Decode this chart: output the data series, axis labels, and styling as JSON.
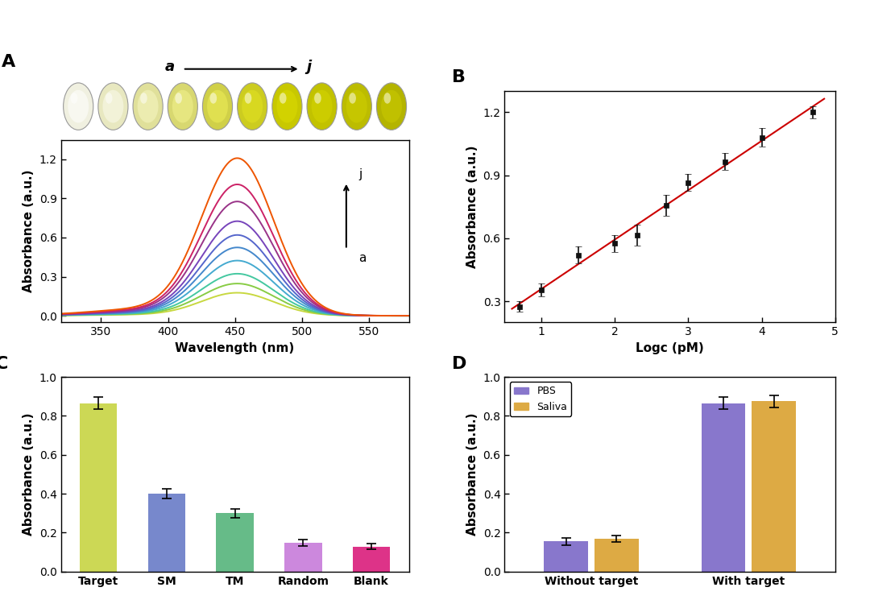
{
  "panel_A": {
    "label": "A",
    "peak_wavelength": 452,
    "peak_sigma": 27,
    "num_curves": 10,
    "peak_heights": [
      0.175,
      0.245,
      0.32,
      0.42,
      0.52,
      0.615,
      0.72,
      0.87,
      1.0,
      1.2
    ],
    "colors": [
      "#c8d840",
      "#88cc44",
      "#44c8a0",
      "#44aad0",
      "#4488cc",
      "#5566cc",
      "#7744bb",
      "#993388",
      "#cc2266",
      "#ee5500"
    ],
    "xlabel": "Wavelength (nm)",
    "ylabel": "Absorbance (a.u.)",
    "xlim": [
      320,
      580
    ],
    "ylim": [
      -0.05,
      1.35
    ],
    "xticks": [
      350,
      400,
      450,
      500,
      550
    ],
    "yticks": [
      0.0,
      0.3,
      0.6,
      0.9,
      1.2
    ]
  },
  "panel_B": {
    "label": "B",
    "x_data": [
      0.7,
      1.0,
      1.5,
      2.0,
      2.3,
      2.7,
      3.0,
      3.5,
      4.0,
      4.7
    ],
    "y_data": [
      0.275,
      0.355,
      0.52,
      0.575,
      0.615,
      0.755,
      0.865,
      0.965,
      1.08,
      1.2
    ],
    "y_err": [
      0.025,
      0.03,
      0.04,
      0.04,
      0.05,
      0.05,
      0.04,
      0.04,
      0.045,
      0.03
    ],
    "line_color": "#cc0000",
    "marker_color": "#111111",
    "xlabel": "Logc (pM)",
    "ylabel": "Absorbance (a.u.)",
    "xlim": [
      0.5,
      5.0
    ],
    "ylim": [
      0.2,
      1.3
    ],
    "xticks": [
      1,
      2,
      3,
      4,
      5
    ],
    "yticks": [
      0.3,
      0.6,
      0.9,
      1.2
    ]
  },
  "panel_C": {
    "label": "C",
    "categories": [
      "Target",
      "SM",
      "TM",
      "Random",
      "Blank"
    ],
    "values": [
      0.865,
      0.4,
      0.3,
      0.148,
      0.128
    ],
    "errors": [
      0.03,
      0.025,
      0.022,
      0.018,
      0.014
    ],
    "colors": [
      "#ccd855",
      "#7788cc",
      "#66bb88",
      "#cc88dd",
      "#dd3388"
    ],
    "ylabel": "Absorbance (a.u.)",
    "ylim": [
      0.0,
      1.0
    ],
    "yticks": [
      0.0,
      0.2,
      0.4,
      0.6,
      0.8,
      1.0
    ]
  },
  "panel_D": {
    "label": "D",
    "groups": [
      "Without target",
      "With target"
    ],
    "pbs_values": [
      0.155,
      0.865
    ],
    "saliva_values": [
      0.168,
      0.875
    ],
    "pbs_errors": [
      0.018,
      0.03
    ],
    "saliva_errors": [
      0.018,
      0.03
    ],
    "pbs_color": "#8877cc",
    "saliva_color": "#ddaa44",
    "ylabel": "Absorbance (a.u.)",
    "ylim": [
      0.0,
      1.0
    ],
    "yticks": [
      0.0,
      0.2,
      0.4,
      0.6,
      0.8,
      1.0
    ],
    "legend_labels": [
      "PBS",
      "Saliva"
    ]
  },
  "vial_colors": [
    "#f0f0e0",
    "#e8e8c0",
    "#e0e09a",
    "#d8d870",
    "#d0d048",
    "#cccc20",
    "#c8c800",
    "#c2c200",
    "#bcbc00",
    "#b4b400"
  ],
  "vial_liquid_colors": [
    "#f8f8f0",
    "#f2f2d8",
    "#ececb0",
    "#e6e680",
    "#e0e050",
    "#d8d820",
    "#d2d200",
    "#cccc00",
    "#c6c600",
    "#c0c000"
  ],
  "photo_bg": "#c8c8c0",
  "top_label_a": "a",
  "top_label_j": "j",
  "background_color": "#ffffff"
}
